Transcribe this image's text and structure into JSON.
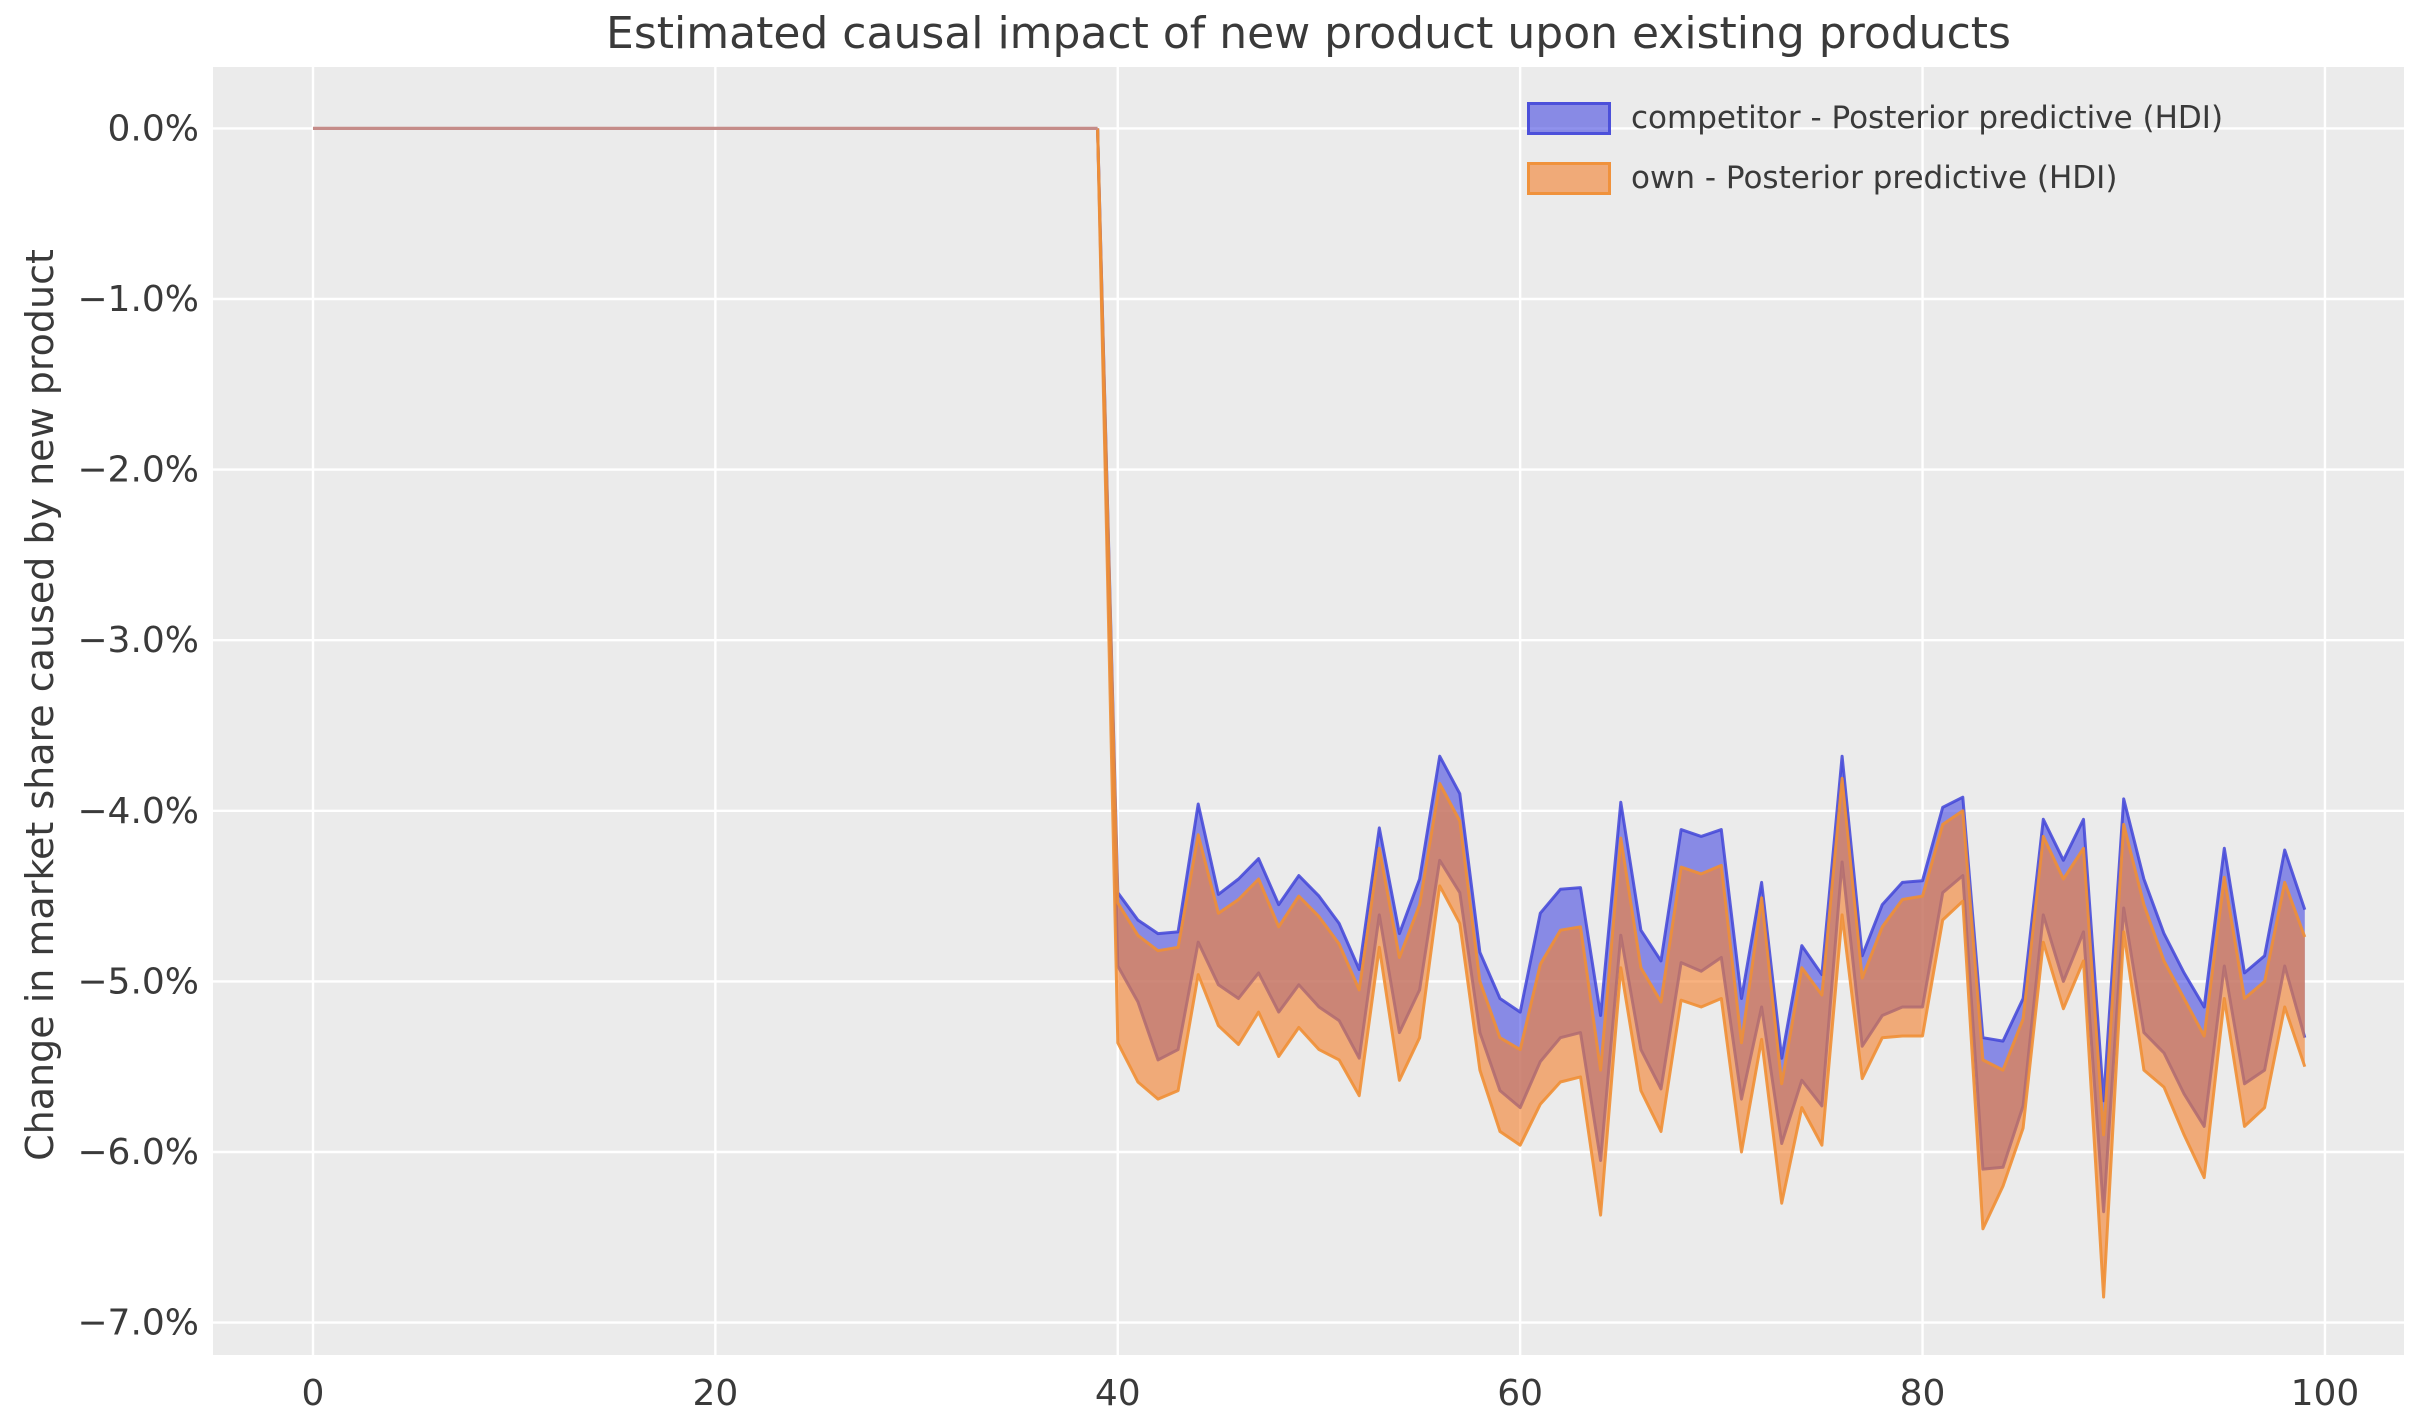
{
  "chart_data": {
    "type": "area",
    "title": "Estimated causal impact of new product upon existing products",
    "ylabel": "Change in market share caused by new product",
    "xlabel": "",
    "grid": true,
    "legend_position": "upper right",
    "plot_background": "#ebebeb",
    "gridline_color": "#ffffff",
    "text_color": "#3a3a3a",
    "x_ticks": {
      "values": [
        0,
        20,
        40,
        60,
        80,
        100
      ],
      "labels": [
        "0",
        "20",
        "40",
        "60",
        "80",
        "100"
      ]
    },
    "y_ticks": {
      "values_pct": [
        0,
        -1,
        -2,
        -3,
        -4,
        -5,
        -6,
        -7
      ],
      "labels": [
        "0.0%",
        "−1.0%",
        "−2.0%",
        "−3.0%",
        "−4.0%",
        "−5.0%",
        "−6.0%",
        "−7.0%"
      ]
    },
    "xlim": [
      -4.97,
      103.93
    ],
    "ylim_pct": [
      -7.19,
      0.36
    ],
    "pre_period": {
      "x_start": 0,
      "x_end": 39,
      "value_pct": 0,
      "line_color": "#c58c89"
    },
    "intervention_x": 40,
    "series": [
      {
        "name": "competitor - Posterior predictive (HDI)",
        "kind": "hdi-band",
        "fill": "rgba(70,74,225,0.60)",
        "edge": "#4245d8",
        "edge_opacity": 0.85,
        "x_start": 40,
        "upper_pct": [
          -4.48,
          -4.64,
          -4.72,
          -4.71,
          -3.96,
          -4.49,
          -4.4,
          -4.28,
          -4.55,
          -4.38,
          -4.5,
          -4.66,
          -4.93,
          -4.1,
          -4.72,
          -4.4,
          -3.68,
          -3.9,
          -4.83,
          -5.1,
          -5.18,
          -4.6,
          -4.46,
          -4.45,
          -5.2,
          -3.95,
          -4.7,
          -4.88,
          -4.11,
          -4.15,
          -4.11,
          -5.1,
          -4.42,
          -5.45,
          -4.79,
          -4.96,
          -3.68,
          -4.85,
          -4.55,
          -4.42,
          -4.41,
          -3.98,
          -3.92,
          -5.33,
          -5.35,
          -5.1,
          -4.05,
          -4.29,
          -4.05,
          -5.7,
          -3.93,
          -4.4,
          -4.72,
          -4.95,
          -5.15,
          -4.22,
          -4.95,
          -4.85,
          -4.23,
          -4.58
        ],
        "lower_pct": [
          -4.91,
          -5.12,
          -5.46,
          -5.4,
          -4.77,
          -5.02,
          -5.1,
          -4.95,
          -5.18,
          -5.02,
          -5.15,
          -5.23,
          -5.45,
          -4.61,
          -5.3,
          -5.05,
          -4.29,
          -4.48,
          -5.3,
          -5.64,
          -5.74,
          -5.47,
          -5.33,
          -5.3,
          -6.05,
          -4.73,
          -5.4,
          -5.63,
          -4.89,
          -4.94,
          -4.86,
          -5.69,
          -5.15,
          -5.95,
          -5.58,
          -5.73,
          -4.3,
          -5.38,
          -5.2,
          -5.15,
          -5.15,
          -4.48,
          -4.38,
          -6.1,
          -6.09,
          -5.73,
          -4.61,
          -5.0,
          -4.71,
          -6.35,
          -4.57,
          -5.3,
          -5.42,
          -5.66,
          -5.85,
          -4.91,
          -5.6,
          -5.52,
          -4.91,
          -5.33
        ]
      },
      {
        "name": "own - Posterior predictive (HDI)",
        "kind": "hdi-band",
        "fill": "rgba(244,130,50,0.62)",
        "edge": "#ef8f35",
        "edge_opacity": 0.9,
        "x_start": 40,
        "upper_pct": [
          -4.54,
          -4.73,
          -4.82,
          -4.8,
          -4.14,
          -4.6,
          -4.52,
          -4.4,
          -4.68,
          -4.5,
          -4.62,
          -4.78,
          -5.05,
          -4.22,
          -4.86,
          -4.55,
          -3.84,
          -4.06,
          -5.0,
          -5.33,
          -5.4,
          -4.9,
          -4.7,
          -4.68,
          -5.52,
          -4.16,
          -4.92,
          -5.12,
          -4.33,
          -4.37,
          -4.32,
          -5.36,
          -4.51,
          -5.6,
          -4.92,
          -5.08,
          -3.81,
          -4.98,
          -4.68,
          -4.52,
          -4.5,
          -4.08,
          -4.0,
          -5.46,
          -5.52,
          -5.22,
          -4.15,
          -4.4,
          -4.22,
          -5.9,
          -4.08,
          -4.55,
          -4.88,
          -5.1,
          -5.32,
          -4.39,
          -5.1,
          -5.0,
          -4.42,
          -4.74
        ],
        "lower_pct": [
          -5.36,
          -5.59,
          -5.69,
          -5.64,
          -4.96,
          -5.26,
          -5.37,
          -5.18,
          -5.44,
          -5.27,
          -5.4,
          -5.46,
          -5.67,
          -4.8,
          -5.58,
          -5.33,
          -4.44,
          -4.66,
          -5.52,
          -5.88,
          -5.96,
          -5.72,
          -5.59,
          -5.56,
          -6.37,
          -4.92,
          -5.64,
          -5.88,
          -5.11,
          -5.15,
          -5.1,
          -6.0,
          -5.34,
          -6.3,
          -5.74,
          -5.96,
          -4.61,
          -5.57,
          -5.33,
          -5.32,
          -5.32,
          -4.64,
          -4.53,
          -6.45,
          -6.2,
          -5.86,
          -4.77,
          -5.16,
          -4.88,
          -6.85,
          -4.71,
          -5.52,
          -5.62,
          -5.9,
          -6.15,
          -5.1,
          -5.85,
          -5.74,
          -5.15,
          -5.5
        ]
      }
    ]
  }
}
